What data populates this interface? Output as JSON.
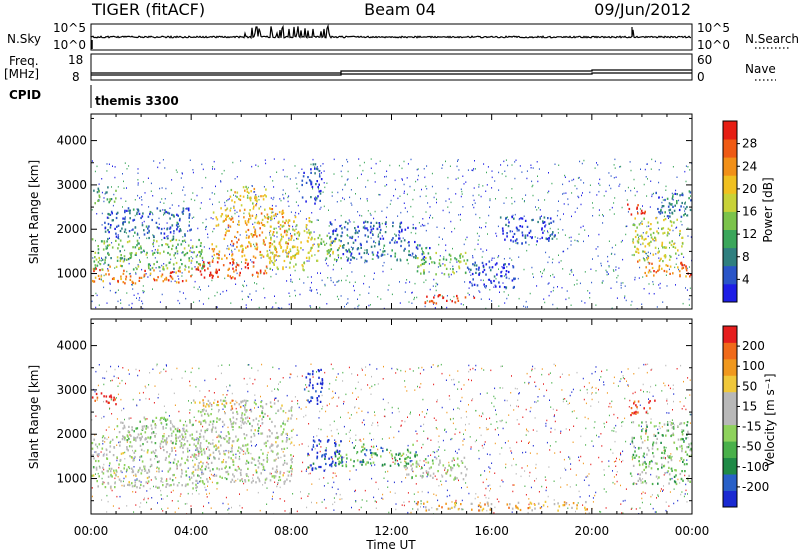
{
  "header": {
    "radar": "TIGER (fitACF)",
    "beam": "Beam 04",
    "date": "09/Jun/2012"
  },
  "strips": {
    "nsky_label": "N.Sky",
    "nsky_ticks": [
      "10^5",
      "10^0"
    ],
    "nsearch_label": "N.Search",
    "nsearch_ticks": [
      "10^5",
      "10^0"
    ],
    "freq_label_top": "Freq.",
    "freq_label_bottom": "[MHz]",
    "freq_ticks": [
      "18",
      "8"
    ],
    "nave_label": "Nave",
    "nave_ticks": [
      "60",
      "0"
    ],
    "cpid_label": "CPID",
    "cpid_value": "themis 3300"
  },
  "time_axis": {
    "label": "Time UT",
    "ticks": [
      "00:00",
      "04:00",
      "08:00",
      "12:00",
      "16:00",
      "20:00",
      "00:00"
    ]
  },
  "range_axis": {
    "label": "Slant Range [km]",
    "ticks": [
      "1000",
      "2000",
      "3000",
      "4000"
    ],
    "range": [
      200,
      4600
    ]
  },
  "colors": {
    "power_scale": [
      "#1e1ee6",
      "#2a55c8",
      "#2f7f7f",
      "#3aa65a",
      "#7bc34b",
      "#c8d238",
      "#f0c020",
      "#f29018",
      "#ef5a14",
      "#e61e14"
    ],
    "velocity_scale": [
      "#1a2ad2",
      "#2860c8",
      "#1f8a46",
      "#49b04a",
      "#8ed25c",
      "#b8b8b8",
      "#b8b8b8",
      "#f0c83a",
      "#f0981e",
      "#f06a1a",
      "#e61e1e"
    ]
  },
  "chart_data": [
    {
      "type": "heatmap",
      "name": "power-panel",
      "colorbar_label": "Power [dB]",
      "colorbar_ticks": [
        "28",
        "24",
        "20",
        "16",
        "12",
        "8",
        "4"
      ],
      "value_range": [
        0,
        32
      ],
      "x_unit": "hours UT",
      "y_unit": "km",
      "regions": [
        {
          "t0": 0.0,
          "t1": 1.2,
          "r0": 800,
          "r1": 1200,
          "level": 0.78
        },
        {
          "t0": 1.2,
          "t1": 4.0,
          "r0": 800,
          "r1": 1100,
          "level": 0.82
        },
        {
          "t0": 0.0,
          "t1": 4.5,
          "r0": 1100,
          "r1": 1800,
          "level": 0.42
        },
        {
          "t0": 0.0,
          "t1": 1.0,
          "r0": 2600,
          "r1": 3000,
          "level": 0.35
        },
        {
          "t0": 0.5,
          "t1": 4.0,
          "r0": 1800,
          "r1": 2500,
          "level": 0.18
        },
        {
          "t0": 4.0,
          "t1": 7.0,
          "r0": 900,
          "r1": 1300,
          "level": 0.9
        },
        {
          "t0": 4.8,
          "t1": 8.0,
          "r0": 1300,
          "r1": 2500,
          "level": 0.7
        },
        {
          "t0": 5.5,
          "t1": 7.0,
          "r0": 2500,
          "r1": 3000,
          "level": 0.6
        },
        {
          "t0": 7.0,
          "t1": 8.8,
          "r0": 1100,
          "r1": 2300,
          "level": 0.55
        },
        {
          "t0": 8.4,
          "t1": 9.2,
          "r0": 2600,
          "r1": 3500,
          "level": 0.12
        },
        {
          "t0": 8.6,
          "t1": 10.0,
          "r0": 1300,
          "r1": 1900,
          "level": 0.5
        },
        {
          "t0": 9.5,
          "t1": 13.0,
          "r0": 1700,
          "r1": 2200,
          "level": 0.14
        },
        {
          "t0": 10.0,
          "t1": 13.5,
          "r0": 1300,
          "r1": 1700,
          "level": 0.22
        },
        {
          "t0": 13.0,
          "t1": 15.0,
          "r0": 1000,
          "r1": 1500,
          "level": 0.45
        },
        {
          "t0": 13.3,
          "t1": 15.3,
          "r0": 350,
          "r1": 550,
          "level": 0.95
        },
        {
          "t0": 15.0,
          "t1": 17.0,
          "r0": 700,
          "r1": 1300,
          "level": 0.1
        },
        {
          "t0": 16.3,
          "t1": 18.5,
          "r0": 1700,
          "r1": 2300,
          "level": 0.12
        },
        {
          "t0": 21.4,
          "t1": 22.3,
          "r0": 2350,
          "r1": 2600,
          "level": 0.95
        },
        {
          "t0": 21.8,
          "t1": 24.0,
          "r0": 950,
          "r1": 1300,
          "level": 0.8
        },
        {
          "t0": 21.6,
          "t1": 23.6,
          "r0": 1300,
          "r1": 2300,
          "level": 0.55
        },
        {
          "t0": 22.5,
          "t1": 24.0,
          "r0": 2300,
          "r1": 2900,
          "level": 0.2
        }
      ]
    },
    {
      "type": "heatmap",
      "name": "velocity-panel",
      "colorbar_label": "Velocity [m s⁻¹]",
      "colorbar_ticks": [
        "200",
        "100",
        "50",
        "15",
        "-15",
        "-50",
        "-100",
        "-200"
      ],
      "value_range": [
        -250,
        250
      ],
      "x_unit": "hours UT",
      "y_unit": "km",
      "regions": [
        {
          "t0": 0.0,
          "t1": 4.5,
          "r0": 800,
          "r1": 2000,
          "level": 0.5
        },
        {
          "t0": 0.0,
          "t1": 1.2,
          "r0": 2700,
          "r1": 2950,
          "level": 0.95
        },
        {
          "t0": 1.0,
          "t1": 4.0,
          "r0": 1800,
          "r1": 2400,
          "level": 0.45
        },
        {
          "t0": 4.0,
          "t1": 8.0,
          "r0": 900,
          "r1": 2800,
          "level": 0.5
        },
        {
          "t0": 4.2,
          "t1": 6.0,
          "r0": 2600,
          "r1": 2800,
          "level": 0.75
        },
        {
          "t0": 8.5,
          "t1": 9.3,
          "r0": 2700,
          "r1": 3500,
          "level": 0.02
        },
        {
          "t0": 8.6,
          "t1": 10.0,
          "r0": 1200,
          "r1": 1900,
          "level": 0.05
        },
        {
          "t0": 9.7,
          "t1": 13.0,
          "r0": 1300,
          "r1": 1800,
          "level": 0.3
        },
        {
          "t0": 12.5,
          "t1": 15.0,
          "r0": 1000,
          "r1": 1500,
          "level": 0.48
        },
        {
          "t0": 13.0,
          "t1": 20.0,
          "r0": 300,
          "r1": 500,
          "level": 0.7
        },
        {
          "t0": 21.5,
          "t1": 22.5,
          "r0": 2450,
          "r1": 2800,
          "level": 0.95
        },
        {
          "t0": 21.5,
          "t1": 24.0,
          "r0": 900,
          "r1": 2300,
          "level": 0.4
        }
      ]
    }
  ]
}
